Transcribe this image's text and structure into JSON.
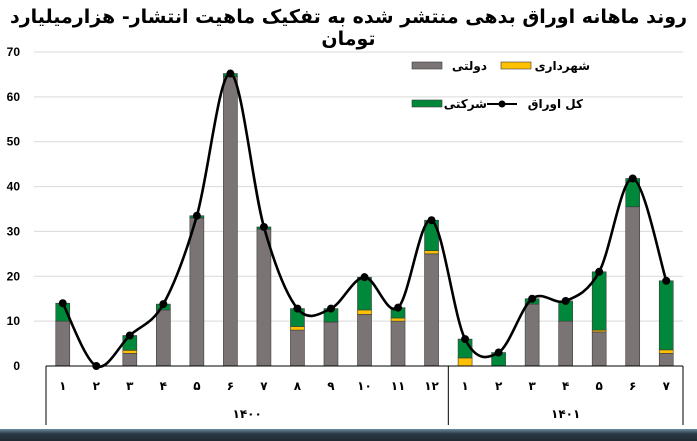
{
  "title": "روند ماهانه اوراق بدهی منتشر شده به تفکیک ماهیت انتشار- هزارمیلیارد تومان",
  "colors": {
    "government": "#7a7574",
    "municipal": "#ffc000",
    "corporate": "#00883a",
    "total_line": "#000000",
    "grid": "#d9d9d9"
  },
  "legend": [
    {
      "key": "government",
      "label": "دولتی",
      "type": "bar"
    },
    {
      "key": "municipal",
      "label": "شهرداری",
      "type": "bar"
    },
    {
      "key": "corporate",
      "label": "شرکتی",
      "type": "bar"
    },
    {
      "key": "total",
      "label": "کل اوراق",
      "type": "line"
    }
  ],
  "chart_data": {
    "type": "bar",
    "stacked": true,
    "title": "روند ماهانه اوراق بدهی منتشر شده به تفکیک ماهیت انتشار- هزارمیلیارد تومان",
    "xlabel": "",
    "ylabel": "",
    "ylim": [
      0,
      70
    ],
    "yticks": [
      0,
      10,
      20,
      30,
      40,
      50,
      60,
      70
    ],
    "grid": true,
    "legend_position": "top-right",
    "groups": [
      {
        "label": "۱۴۰۰",
        "count": 12
      },
      {
        "label": "۱۴۰۱",
        "count": 7
      }
    ],
    "categories": [
      "۱",
      "۲",
      "۳",
      "۴",
      "۵",
      "۶",
      "۷",
      "۸",
      "۹",
      "۱۰",
      "۱۱",
      "۱۲",
      "۱",
      "۲",
      "۳",
      "۴",
      "۵",
      "۶",
      "۷"
    ],
    "series": [
      {
        "name": "دولتی",
        "key": "government",
        "type": "bar",
        "values": [
          10.0,
          0,
          2.8,
          12.5,
          33.0,
          64.5,
          30.5,
          8.0,
          9.8,
          11.5,
          10.0,
          25.0,
          0,
          0,
          13.8,
          10.0,
          7.6,
          35.5,
          2.8
        ]
      },
      {
        "name": "شهرداری",
        "key": "municipal",
        "type": "bar",
        "values": [
          0,
          0,
          0.7,
          0,
          0,
          0,
          0,
          0.8,
          0,
          1.0,
          0.7,
          0.7,
          1.8,
          0,
          0,
          0,
          0.4,
          0,
          0.8
        ]
      },
      {
        "name": "شرکتی",
        "key": "corporate",
        "type": "bar",
        "values": [
          4.0,
          0,
          3.3,
          1.3,
          0.5,
          0.7,
          0.5,
          4.0,
          3.0,
          7.3,
          2.3,
          6.8,
          4.2,
          3.0,
          1.2,
          4.5,
          13.0,
          6.3,
          15.4
        ]
      },
      {
        "name": "کل اوراق",
        "key": "total",
        "type": "line",
        "values": [
          14.0,
          0,
          6.8,
          13.8,
          33.5,
          65.2,
          31.0,
          12.8,
          12.8,
          19.8,
          13.0,
          32.5,
          6.0,
          3.0,
          15.0,
          14.5,
          21.0,
          41.8,
          19.0
        ]
      }
    ]
  }
}
